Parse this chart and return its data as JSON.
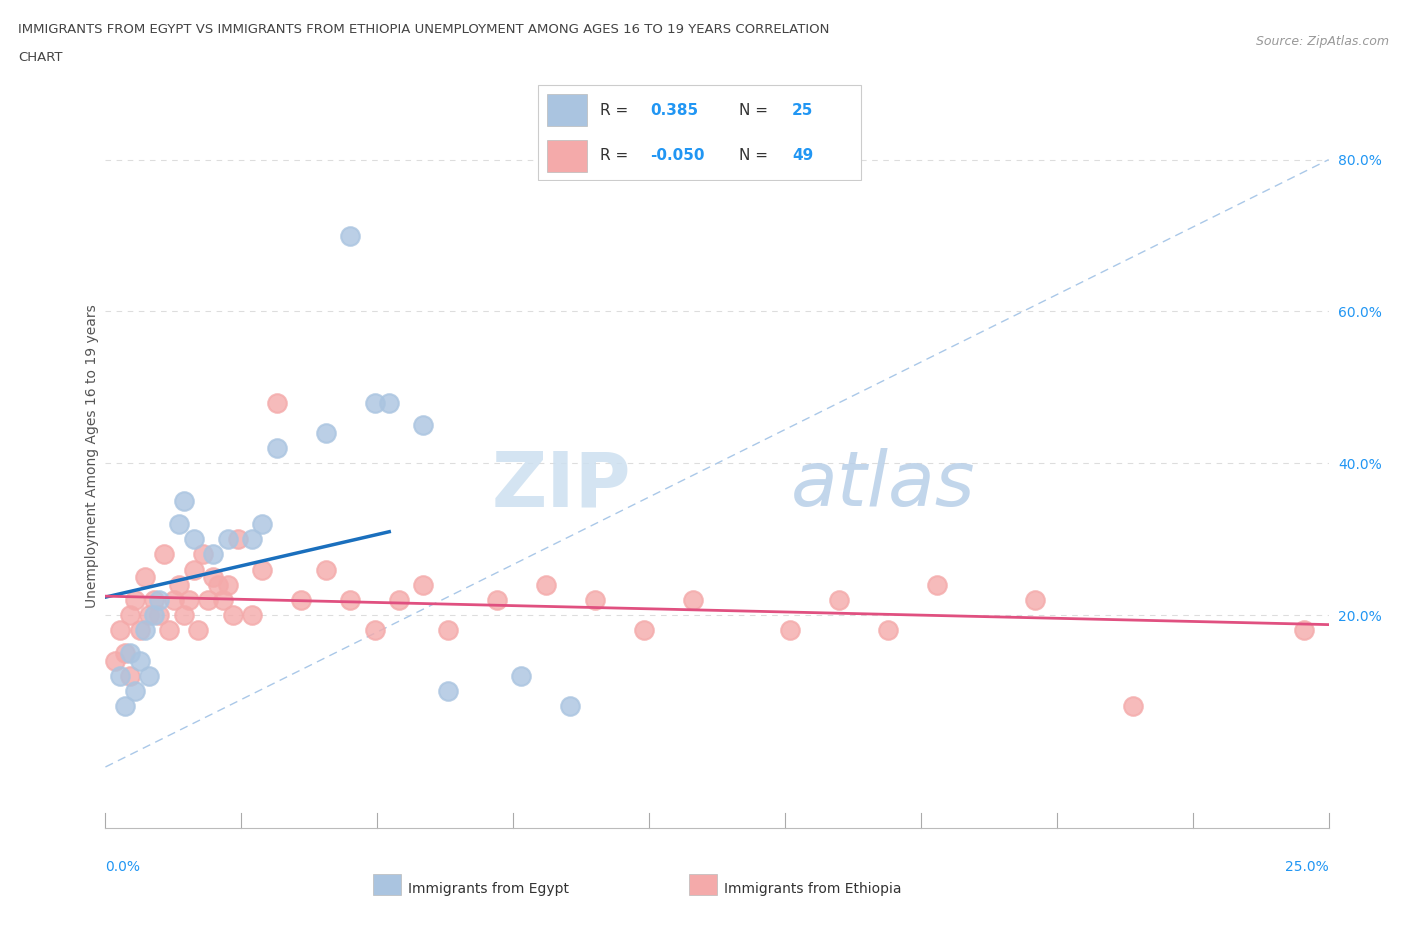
{
  "title_line1": "IMMIGRANTS FROM EGYPT VS IMMIGRANTS FROM ETHIOPIA UNEMPLOYMENT AMONG AGES 16 TO 19 YEARS CORRELATION",
  "title_line2": "CHART",
  "source_text": "Source: ZipAtlas.com",
  "ylabel": "Unemployment Among Ages 16 to 19 years",
  "egypt_color": "#aac4e0",
  "ethiopia_color": "#f4aaaa",
  "egypt_line_color": "#1a6fbd",
  "ethiopia_line_color": "#e05080",
  "diag_color": "#aac8e8",
  "egypt_R": "0.385",
  "egypt_N": "25",
  "ethiopia_R": "-0.050",
  "ethiopia_N": "49",
  "xlim": [
    0.0,
    25.0
  ],
  "ylim": [
    -8.0,
    90.0
  ],
  "egypt_scatter_x": [
    0.3,
    0.4,
    0.5,
    0.6,
    0.7,
    0.8,
    0.9,
    1.0,
    1.1,
    1.5,
    1.6,
    1.8,
    2.2,
    2.5,
    3.0,
    3.2,
    3.5,
    4.5,
    5.0,
    5.5,
    5.8,
    6.5,
    7.0,
    8.5,
    9.5
  ],
  "egypt_scatter_y": [
    12,
    8,
    15,
    10,
    14,
    18,
    12,
    20,
    22,
    32,
    35,
    30,
    28,
    30,
    30,
    32,
    42,
    44,
    70,
    48,
    48,
    45,
    10,
    12,
    8
  ],
  "ethiopia_scatter_x": [
    0.2,
    0.3,
    0.4,
    0.5,
    0.5,
    0.6,
    0.7,
    0.8,
    0.9,
    1.0,
    1.1,
    1.2,
    1.3,
    1.4,
    1.5,
    1.6,
    1.7,
    1.8,
    1.9,
    2.0,
    2.1,
    2.2,
    2.3,
    2.4,
    2.5,
    2.6,
    2.7,
    3.0,
    3.2,
    3.5,
    4.0,
    4.5,
    5.0,
    5.5,
    6.0,
    6.5,
    7.0,
    8.0,
    9.0,
    10.0,
    11.0,
    12.0,
    14.0,
    15.0,
    16.0,
    17.0,
    19.0,
    21.0,
    24.5
  ],
  "ethiopia_scatter_y": [
    14,
    18,
    15,
    20,
    12,
    22,
    18,
    25,
    20,
    22,
    20,
    28,
    18,
    22,
    24,
    20,
    22,
    26,
    18,
    28,
    22,
    25,
    24,
    22,
    24,
    20,
    30,
    20,
    26,
    48,
    22,
    26,
    22,
    18,
    22,
    24,
    18,
    22,
    24,
    22,
    18,
    22,
    18,
    22,
    18,
    24,
    22,
    8,
    18
  ],
  "egypt_trend_x0": 0.0,
  "egypt_trend_x1": 5.5,
  "ethiopia_trend_slope": -0.15,
  "ethiopia_trend_intercept": 22.5,
  "watermark_zip_color": "#c5d8ee",
  "watermark_atlas_color": "#b8d4ee"
}
